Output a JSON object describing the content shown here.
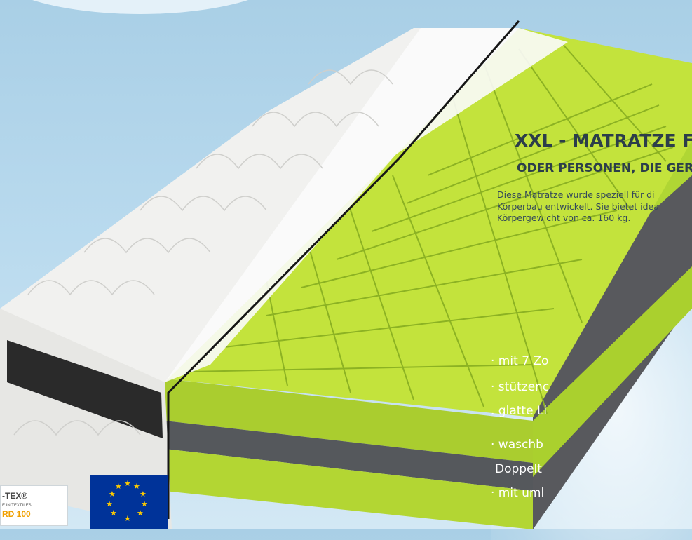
{
  "headline": "XXL - MATRATZE FÜ",
  "subline": "ODER PERSONEN, DIE GER",
  "description": [
    "Diese Matratze wurde speziell für di",
    "Körperbau entwickelt. Sie bietet idea",
    "Körpergewicht von ca. 160 kg."
  ],
  "features": [
    "· mit 7 Zo",
    "· stützenc",
    ". glatte Li",
    "· waschb",
    "Doppelt",
    "· mit uml"
  ],
  "logos": {
    "oeko_tex": {
      "line1": "-TEX®",
      "line2": "E IN TEXTILES",
      "line3": "RD 100"
    },
    "eu_flag": {
      "icon": "eu-flag-icon"
    }
  },
  "colors": {
    "foam_green": "#b4d834",
    "foam_gray": "#55585c",
    "cover_white": "#eeeeec",
    "background_blue": "#b3d6ec"
  }
}
